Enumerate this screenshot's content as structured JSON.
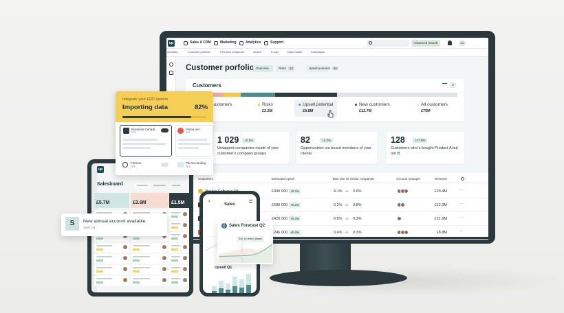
{
  "nav": {
    "logo": "up",
    "menu": [
      "Sales & CRM",
      "Marketing",
      "Analytics",
      "Support"
    ],
    "advanced_search": "Advanced Search",
    "avatar": "JM"
  },
  "subnav": [
    "Activities",
    "Customer portfolio",
    "Find new prospects",
    "Orders",
    "E-sign",
    "Data emails",
    "Campaigns"
  ],
  "page": {
    "title": "Customer porfolio",
    "tabs": [
      {
        "label": "Overview"
      },
      {
        "label": "Risks",
        "count": "12"
      },
      {
        "label": "Upsell potential",
        "count": "12"
      }
    ]
  },
  "customers_card": {
    "title": "Customers",
    "filter_count": "2",
    "segments": [
      {
        "label": "Customers"
      },
      {
        "label": "Risks",
        "value": "£2.2M"
      },
      {
        "label": "Upsell potential",
        "value": "£8.8M"
      },
      {
        "label": "New customers",
        "value": "£12.7M"
      },
      {
        "label": "All customers",
        "value": "£75M"
      }
    ]
  },
  "stats": [
    {
      "value": "1 029",
      "change": "+2.1%",
      "text": "Untapped companies inside of your customer's company groups"
    },
    {
      "value": "82",
      "change": "+4.2%",
      "text": "Opportunities via board members of your clients"
    },
    {
      "value": "128",
      "change": "+17.9%",
      "text": "Customers who's bought Product A but not B"
    }
  ],
  "table": {
    "headers": [
      "Customers",
      "Estimated upsell",
      "Take rate vs similar companies",
      "Account manager",
      "Revenue"
    ],
    "vs_label": "vs",
    "rows": [
      {
        "name": "Bauter Software AB",
        "upsell": "£900 000",
        "change": "+0.4%",
        "rate": "4.1%",
        "similar": "0.6%",
        "revenue": "£23.4M"
      },
      {
        "upsell": "£680 000",
        "change": "+0.4%",
        "rate": "0.2%",
        "similar": "0.8%",
        "revenue": "£12.3M"
      },
      {
        "upsell": "£420 000",
        "change": "+0.4%",
        "rate": "0.5%",
        "similar": "0.3%",
        "revenue": "£21.9M"
      },
      {
        "upsell": "£246 000",
        "change": "+0.4%",
        "rate": "0.4%",
        "similar": "0.3%",
        "revenue": "£8.8M"
      }
    ]
  },
  "erp": {
    "eyebrow": "Integrate your ERP-system",
    "title": "Importing data",
    "progress": {
      "value": 82,
      "label": "82%"
    },
    "systems": [
      {
        "name": "Business Central",
        "type": "ERP"
      },
      {
        "name": "Visma.net",
        "type": "ERP"
      },
      {
        "name": "Fortnox",
        "type": "ERP"
      },
      {
        "name": "PE accounting",
        "type": "ERP"
      }
    ]
  },
  "tablet": {
    "logo": "up",
    "title": "Salesboard",
    "tabs": [
      "Salesboard",
      "Opportunities",
      "Forecast"
    ],
    "columns": [
      "£5.7M",
      "£3.6M",
      "£1.5M"
    ]
  },
  "notification": {
    "icon": "S",
    "title": "New annual account available",
    "subtitle": "Swift Ltd"
  },
  "phone": {
    "title": "Sales",
    "forecast_title": "Sales Forecast Q2",
    "target_chip": "Est. to reach target",
    "upsell_title": "Upsell Q1"
  }
}
